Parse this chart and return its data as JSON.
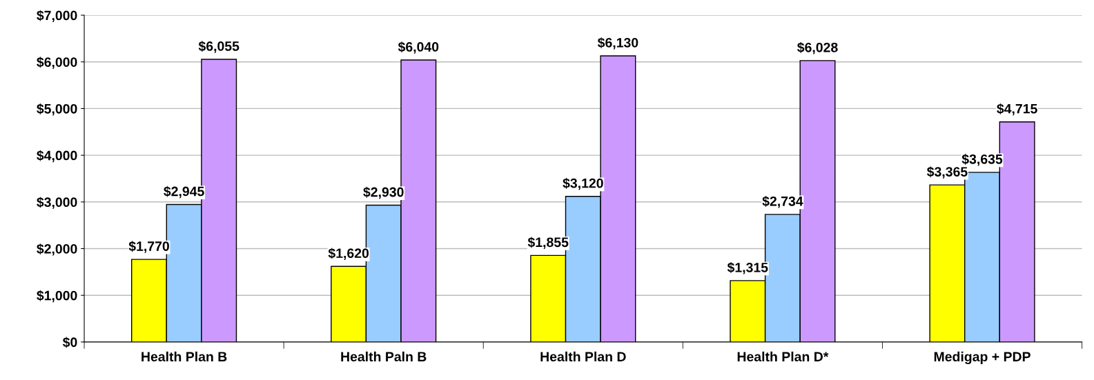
{
  "chart_data": {
    "type": "bar",
    "categories": [
      "Health Plan B",
      "Health Paln B",
      "Health Plan D",
      "Health Plan D*",
      "Medigap + PDP"
    ],
    "series": [
      {
        "color": "#ffff00",
        "values": [
          1770,
          1620,
          1855,
          1315,
          3365
        ],
        "value_labels": [
          "$1,770",
          "$1,620",
          "$1,855",
          "$1,315",
          "$3,365"
        ]
      },
      {
        "color": "#99ccff",
        "values": [
          2945,
          2930,
          3120,
          2734,
          3635
        ],
        "value_labels": [
          "$2,945",
          "$2,930",
          "$3,120",
          "$2,734",
          "$3,635"
        ]
      },
      {
        "color": "#cc99ff",
        "values": [
          6055,
          6040,
          6130,
          6028,
          4715
        ],
        "value_labels": [
          "$6,055",
          "$6,040",
          "$6,130",
          "$6,028",
          "$4,715"
        ]
      }
    ],
    "ylim": [
      0,
      7000
    ],
    "yticks": [
      {
        "value": 0,
        "label": "$0"
      },
      {
        "value": 1000,
        "label": "$1,000"
      },
      {
        "value": 2000,
        "label": "$2,000"
      },
      {
        "value": 3000,
        "label": "$3,000"
      },
      {
        "value": 4000,
        "label": "$4,000"
      },
      {
        "value": 5000,
        "label": "$5,000"
      },
      {
        "value": 6000,
        "label": "$6,000"
      },
      {
        "value": 7000,
        "label": "$7,000"
      }
    ],
    "grid": "y"
  }
}
